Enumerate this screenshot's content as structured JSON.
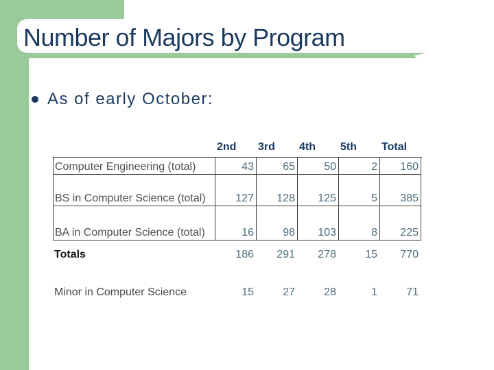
{
  "slide": {
    "title": "Number of Majors by Program",
    "bullet": "As of early October:",
    "colors": {
      "accent_green": "#9bca9a",
      "title_navy": "#1b3a5e",
      "header_navy": "#17375e",
      "number_slate": "#4d6d7d",
      "label_gray": "#4f4f4f",
      "border": "#3c3c3c"
    }
  },
  "table": {
    "headers": [
      "2nd",
      "3rd",
      "4th",
      "5th",
      "Total"
    ],
    "rows": [
      {
        "label": "Computer Engineering (total)",
        "values": [
          "43",
          "65",
          "50",
          "2",
          "160"
        ]
      },
      {
        "label": "BS in Computer Science (total)",
        "values": [
          "127",
          "128",
          "125",
          "5",
          "385"
        ]
      },
      {
        "label": "BA in Computer Science (total)",
        "values": [
          "16",
          "98",
          "103",
          "8",
          "225"
        ]
      }
    ],
    "totals": {
      "label": "Totals",
      "values": [
        "186",
        "291",
        "278",
        "15",
        "770"
      ]
    },
    "minor": {
      "label": "Minor in Computer Science",
      "values": [
        "15",
        "27",
        "28",
        "1",
        "71"
      ]
    }
  },
  "chart_data": {
    "type": "table",
    "title": "Number of Majors by Program",
    "categories": [
      "2nd",
      "3rd",
      "4th",
      "5th",
      "Total"
    ],
    "series": [
      {
        "name": "Computer Engineering (total)",
        "values": [
          43,
          65,
          50,
          2,
          160
        ]
      },
      {
        "name": "BS in Computer Science (total)",
        "values": [
          127,
          128,
          125,
          5,
          385
        ]
      },
      {
        "name": "BA in Computer Science (total)",
        "values": [
          16,
          98,
          103,
          8,
          225
        ]
      },
      {
        "name": "Totals",
        "values": [
          186,
          291,
          278,
          15,
          770
        ]
      },
      {
        "name": "Minor in Computer Science",
        "values": [
          15,
          27,
          28,
          1,
          71
        ]
      }
    ]
  }
}
